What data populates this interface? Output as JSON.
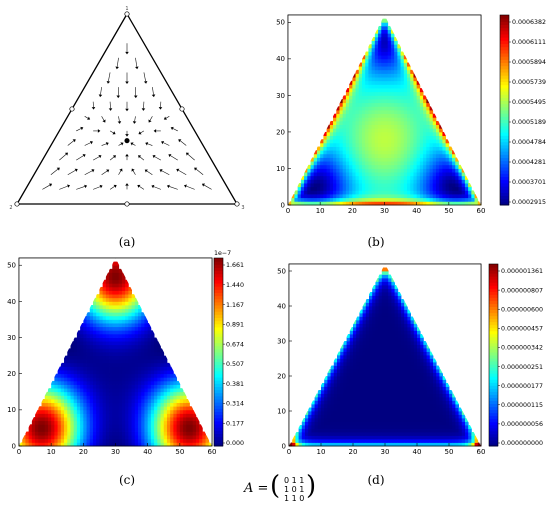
{
  "figure": {
    "equation": {
      "lhs": "A =",
      "matrix_rows": [
        "0 1 1",
        "1 0 1",
        "1 1 0"
      ]
    }
  },
  "chart_data": [
    {
      "id": "a",
      "caption": "(a)",
      "type": "other",
      "description_kind": "simplex-vector-field",
      "vertex_labels": [
        "1",
        "2",
        "3"
      ],
      "rest_points": [
        "vertices",
        "edge midpoints",
        "centroid"
      ]
    },
    {
      "id": "b",
      "caption": "(b)",
      "type": "heatmap",
      "xlim": [
        0,
        60
      ],
      "ylim": [
        0,
        52
      ],
      "xticks": [
        "0",
        "10",
        "20",
        "30",
        "40",
        "50",
        "60"
      ],
      "yticks": [
        "0",
        "10",
        "20",
        "30",
        "40",
        "50"
      ],
      "colorbar": {
        "ticks": [
          "0.0006382",
          "0.0006111",
          "0.0005894",
          "0.0005739",
          "0.0005495",
          "0.0005189",
          "0.0004784",
          "0.0004281",
          "0.0003701",
          "0.0002915"
        ],
        "min": 0.0002915,
        "max": 0.0006382
      }
    },
    {
      "id": "c",
      "caption": "(c)",
      "type": "heatmap",
      "xlim": [
        0,
        60
      ],
      "ylim": [
        0,
        52
      ],
      "xticks": [
        "0",
        "10",
        "20",
        "30",
        "40",
        "50",
        "60"
      ],
      "yticks": [
        "0",
        "10",
        "20",
        "30",
        "40",
        "50"
      ],
      "colorbar": {
        "exponent": "1e−7",
        "ticks": [
          "1.661",
          "1.440",
          "1.167",
          "0.891",
          "0.674",
          "0.507",
          "0.381",
          "0.314",
          "0.177",
          "0.000"
        ],
        "min": 0.0,
        "max": 1.661
      }
    },
    {
      "id": "d",
      "caption": "(d)",
      "type": "heatmap",
      "xlim": [
        0,
        60
      ],
      "ylim": [
        0,
        52
      ],
      "xticks": [
        "0",
        "10",
        "20",
        "30",
        "40",
        "50",
        "60"
      ],
      "yticks": [
        "0",
        "10",
        "20",
        "30",
        "40",
        "50"
      ],
      "colorbar": {
        "ticks": [
          "0.000001361",
          "0.000000807",
          "0.000000600",
          "0.000000457",
          "0.000000342",
          "0.000000251",
          "0.000000177",
          "0.000000115",
          "0.000000056",
          "0.000000000"
        ],
        "min": 0.0,
        "max": 1.361e-06
      }
    }
  ]
}
